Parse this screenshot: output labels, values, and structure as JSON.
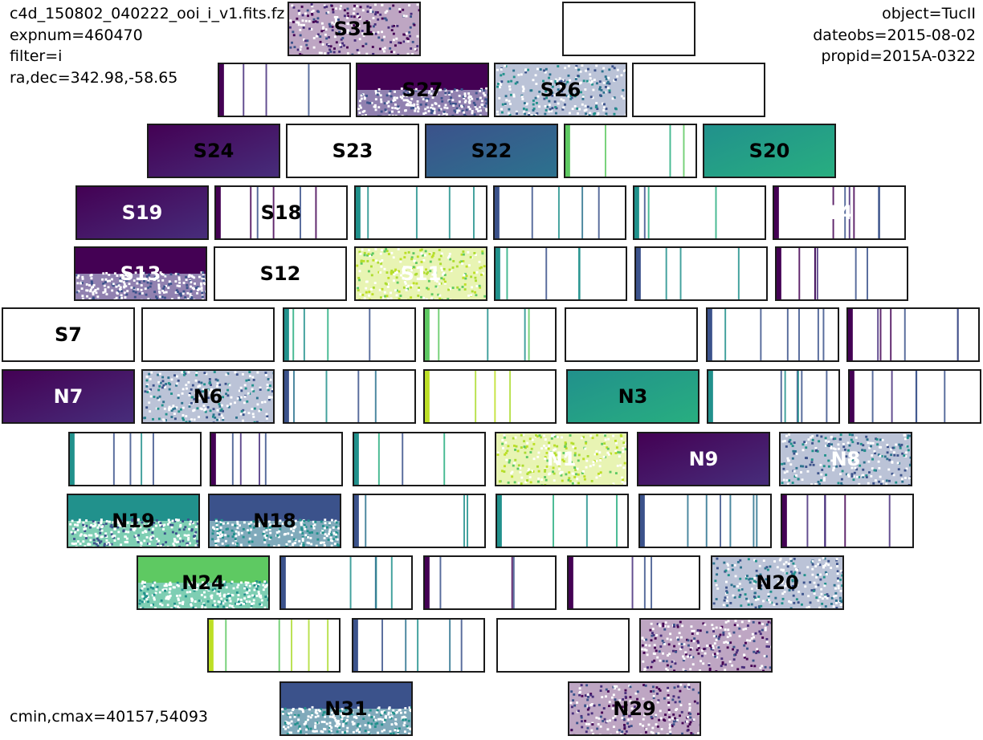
{
  "header": {
    "filename": "c4d_150802_040222_ooi_i_v1.fits.fz",
    "expnum": "expnum=460470",
    "filter": "filter=i",
    "radec": "ra,dec=342.98,-58.65",
    "object": "object=TucII",
    "dateobs": "dateobs=2015-08-02",
    "propid": "propid=2015A-0322"
  },
  "footer": {
    "cminmax": "cmin,cmax=40157,54093"
  },
  "colors": {
    "viridis_dark": "#440154",
    "viridis_blue": "#3b528b",
    "viridis_teal": "#21918c",
    "viridis_green": "#5ec962",
    "viridis_yellow": "#bddf26",
    "frame": "#1a1a1a"
  },
  "ccds": [
    {
      "label": "S31",
      "labelColor": "dark",
      "style": "speckle",
      "tone": "dark"
    },
    {
      "label": "",
      "labelColor": "dark",
      "style": "blank",
      "tone": "dark"
    },
    {
      "label": "",
      "labelColor": "dark",
      "style": "stripes",
      "tone": "dark"
    },
    {
      "label": "S27",
      "labelColor": "dark",
      "style": "halfspeckle",
      "tone": "dark"
    },
    {
      "label": "S26",
      "labelColor": "dark",
      "style": "speckle",
      "tone": "blue"
    },
    {
      "label": "",
      "labelColor": "dark",
      "style": "blank",
      "tone": "dark"
    },
    {
      "label": "S24",
      "labelColor": "dark",
      "style": "gradient",
      "tone": "dark"
    },
    {
      "label": "S23",
      "labelColor": "dark",
      "style": "blank",
      "tone": "dark"
    },
    {
      "label": "S22",
      "labelColor": "dark",
      "style": "gradient",
      "tone": "blue"
    },
    {
      "label": "",
      "labelColor": "light",
      "style": "stripes",
      "tone": "green"
    },
    {
      "label": "S20",
      "labelColor": "dark",
      "style": "gradient",
      "tone": "teal"
    },
    {
      "label": "S19",
      "labelColor": "light",
      "style": "gradient",
      "tone": "dark"
    },
    {
      "label": "S18",
      "labelColor": "dark",
      "style": "stripes",
      "tone": "dark"
    },
    {
      "label": "",
      "labelColor": "light",
      "style": "stripes",
      "tone": "teal"
    },
    {
      "label": "",
      "labelColor": "light",
      "style": "stripes",
      "tone": "blue"
    },
    {
      "label": "",
      "labelColor": "light",
      "style": "stripes",
      "tone": "teal"
    },
    {
      "label": "14",
      "labelColor": "light",
      "style": "stripes",
      "tone": "dark"
    },
    {
      "label": "S13",
      "labelColor": "light",
      "style": "halfspeckle",
      "tone": "dark"
    },
    {
      "label": "S12",
      "labelColor": "dark",
      "style": "blank",
      "tone": "dark"
    },
    {
      "label": "S11",
      "labelColor": "light",
      "style": "speckle",
      "tone": "yellow"
    },
    {
      "label": "",
      "labelColor": "dark",
      "style": "stripes",
      "tone": "teal"
    },
    {
      "label": "",
      "labelColor": "dark",
      "style": "stripes",
      "tone": "blue"
    },
    {
      "label": "",
      "labelColor": "dark",
      "style": "stripes",
      "tone": "dark"
    },
    {
      "label": "S7",
      "labelColor": "dark",
      "style": "blank",
      "tone": "dark"
    },
    {
      "label": "",
      "labelColor": "dark",
      "style": "blank",
      "tone": "dark"
    },
    {
      "label": "",
      "labelColor": "dark",
      "style": "stripes",
      "tone": "teal"
    },
    {
      "label": "",
      "labelColor": "dark",
      "style": "stripes",
      "tone": "green"
    },
    {
      "label": "",
      "labelColor": "dark",
      "style": "blank",
      "tone": "dark"
    },
    {
      "label": "",
      "labelColor": "dark",
      "style": "stripes",
      "tone": "blue"
    },
    {
      "label": "",
      "labelColor": "dark",
      "style": "stripes",
      "tone": "dark"
    },
    {
      "label": "N7",
      "labelColor": "light",
      "style": "gradient",
      "tone": "dark"
    },
    {
      "label": "N6",
      "labelColor": "dark",
      "style": "speckle",
      "tone": "blue"
    },
    {
      "label": "",
      "labelColor": "dark",
      "style": "stripes",
      "tone": "blue"
    },
    {
      "label": "",
      "labelColor": "dark",
      "style": "stripes",
      "tone": "yellow"
    },
    {
      "label": "N3",
      "labelColor": "dark",
      "style": "gradient",
      "tone": "teal"
    },
    {
      "label": "",
      "labelColor": "dark",
      "style": "stripes",
      "tone": "teal"
    },
    {
      "label": "",
      "labelColor": "dark",
      "style": "stripes",
      "tone": "dark"
    },
    {
      "label": "",
      "labelColor": "dark",
      "style": "stripes",
      "tone": "teal"
    },
    {
      "label": "",
      "labelColor": "dark",
      "style": "stripes",
      "tone": "dark"
    },
    {
      "label": "",
      "labelColor": "light",
      "style": "stripes",
      "tone": "teal"
    },
    {
      "label": "N1",
      "labelColor": "light",
      "style": "speckle",
      "tone": "yellow"
    },
    {
      "label": "N9",
      "labelColor": "light",
      "style": "gradient",
      "tone": "dark"
    },
    {
      "label": "N8",
      "labelColor": "light",
      "style": "speckle",
      "tone": "blue"
    },
    {
      "label": "N19",
      "labelColor": "dark",
      "style": "halfspeckle",
      "tone": "teal"
    },
    {
      "label": "N18",
      "labelColor": "dark",
      "style": "halfspeckle",
      "tone": "blue"
    },
    {
      "label": "",
      "labelColor": "dark",
      "style": "stripes",
      "tone": "blue"
    },
    {
      "label": "",
      "labelColor": "light",
      "style": "stripes",
      "tone": "teal"
    },
    {
      "label": "",
      "labelColor": "dark",
      "style": "stripes",
      "tone": "blue"
    },
    {
      "label": "",
      "labelColor": "dark",
      "style": "stripes",
      "tone": "dark"
    },
    {
      "label": "N24",
      "labelColor": "dark",
      "style": "halfspeckle",
      "tone": "green"
    },
    {
      "label": "",
      "labelColor": "dark",
      "style": "stripes",
      "tone": "blue"
    },
    {
      "label": "",
      "labelColor": "dark",
      "style": "stripes",
      "tone": "dark"
    },
    {
      "label": "",
      "labelColor": "dark",
      "style": "stripes",
      "tone": "dark"
    },
    {
      "label": "N20",
      "labelColor": "dark",
      "style": "speckle",
      "tone": "blue"
    },
    {
      "label": "",
      "labelColor": "dark",
      "style": "stripes",
      "tone": "yellow"
    },
    {
      "label": "",
      "labelColor": "light",
      "style": "stripes",
      "tone": "blue"
    },
    {
      "label": "",
      "labelColor": "dark",
      "style": "blank",
      "tone": "dark"
    },
    {
      "label": "",
      "labelColor": "light",
      "style": "speckle",
      "tone": "dark"
    },
    {
      "label": "N31",
      "labelColor": "dark",
      "style": "halfspeckle",
      "tone": "blue"
    },
    {
      "label": "N29",
      "labelColor": "dark",
      "style": "speckle",
      "tone": "dark"
    }
  ]
}
